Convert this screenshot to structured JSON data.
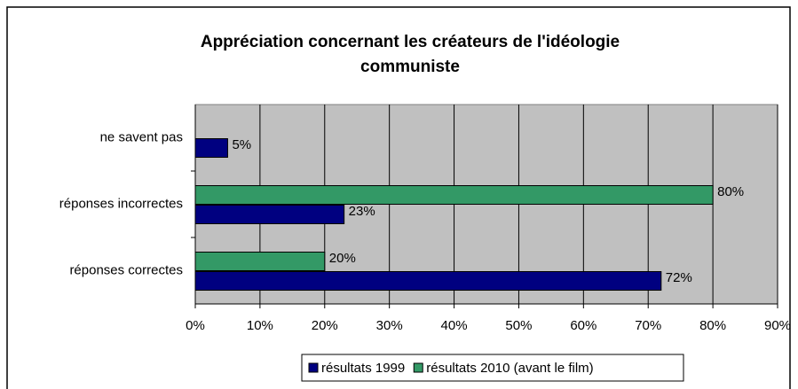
{
  "chart_data": {
    "type": "hbar",
    "title": [
      "Appréciation concernant les créateurs de l'idéologie",
      "communiste"
    ],
    "categories": [
      "ne savent pas",
      "réponses incorrectes",
      "réponses correctes"
    ],
    "series": [
      {
        "name": "résultats 1999",
        "color": "#000080",
        "values": [
          5,
          23,
          72
        ],
        "value_labels": [
          "5%",
          "23%",
          "72%"
        ]
      },
      {
        "name": "résultats 2010 (avant le film)",
        "color": "#339966",
        "values": [
          null,
          80,
          20
        ],
        "value_labels": [
          null,
          "80%",
          "20%"
        ]
      }
    ],
    "xlim": [
      0,
      90
    ],
    "xticks": [
      {
        "value": 0,
        "label": "0%"
      },
      {
        "value": 10,
        "label": "10%"
      },
      {
        "value": 20,
        "label": "20%"
      },
      {
        "value": 30,
        "label": "30%"
      },
      {
        "value": 40,
        "label": "40%"
      },
      {
        "value": 50,
        "label": "50%"
      },
      {
        "value": 60,
        "label": "60%"
      },
      {
        "value": 70,
        "label": "70%"
      },
      {
        "value": 80,
        "label": "80%"
      },
      {
        "value": 90,
        "label": "90%"
      }
    ],
    "grid": true,
    "legend": "bottom"
  }
}
